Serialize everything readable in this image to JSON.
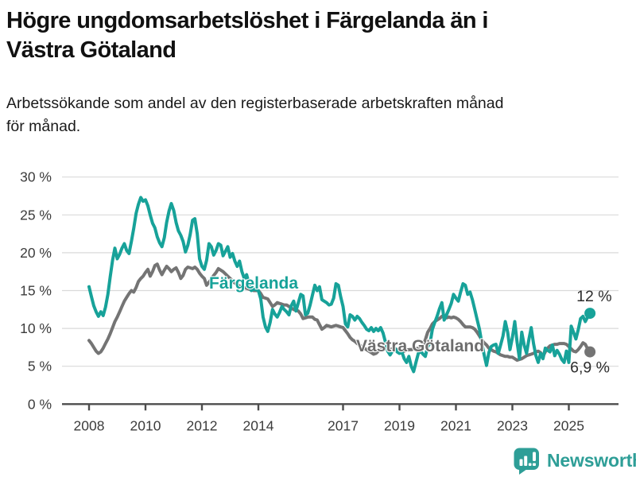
{
  "header": {
    "title_lines": [
      "Högre ungdomsarbetslöshet i Färgelanda än i",
      "Västra Götaland"
    ],
    "subtitle_lines": [
      "Arbetssökande som andel av den registerbaserade arbetskraften månad",
      "för månad."
    ]
  },
  "footer": {
    "brand": "Newsworthy"
  },
  "colors": {
    "teal": "#17A299",
    "gray_line": "#747474",
    "gray_label": "#6D6D6D",
    "grid": "#DADADA",
    "axis": "#4D4D4D",
    "tick_text": "#3C3C3C",
    "end_label_text": "#2D2D2D",
    "brand_teal": "#2E9E97"
  },
  "chart_data": {
    "type": "line",
    "title": "Högre ungdomsarbetslöshet i Färgelanda än i Västra Götaland",
    "subtitle": "Arbetssökande som andel av den registerbaserade arbetskraften månad för månad.",
    "x_unit": "month",
    "x_start_year": 2008,
    "x_end": "2025-10",
    "ylim": [
      0,
      30
    ],
    "grid": true,
    "legend_position": "inline-labels",
    "y_ticks": [
      0,
      5,
      10,
      15,
      20,
      25,
      30
    ],
    "y_tick_labels": [
      "0 %",
      "5 %",
      "10 %",
      "15 %",
      "20 %",
      "25 %",
      "30 %"
    ],
    "x_ticks": [
      2008,
      2010,
      2012,
      2014,
      2017,
      2019,
      2021,
      2023,
      2025
    ],
    "x_tick_labels": [
      "2008",
      "2010",
      "2012",
      "2014",
      "2017",
      "2019",
      "2021",
      "2023",
      "2025"
    ],
    "series": [
      {
        "name": "Färgelanda",
        "color": "#17A299",
        "end_label": "12 %",
        "end_value": 12,
        "values": [
          15.5,
          14.2,
          13,
          12.2,
          11.6,
          12.2,
          11.7,
          12.8,
          14.5,
          16.8,
          19,
          20.6,
          19.2,
          19.8,
          20.6,
          21.2,
          20.3,
          19.9,
          21.5,
          23.2,
          25.2,
          26.4,
          27.3,
          26.8,
          27,
          26.2,
          25,
          23.9,
          23.3,
          22.1,
          21.3,
          20.8,
          22,
          24,
          25.5,
          26.5,
          25.6,
          24,
          22.9,
          22.3,
          21.5,
          20.1,
          21,
          22.4,
          24.3,
          24.5,
          22.5,
          19.2,
          18.2,
          17.8,
          19,
          21.2,
          20.8,
          19.7,
          20.3,
          21.2,
          21,
          19.6,
          20.2,
          20.8,
          19.4,
          19.9,
          18.9,
          18.2,
          18.9,
          17.5,
          16.6,
          17.1,
          15.9,
          15,
          15.2,
          15.1,
          15,
          13.9,
          11.5,
          10.2,
          9.6,
          10.8,
          12.5,
          11.9,
          11.5,
          12.1,
          12.9,
          12.5,
          12.2,
          11.8,
          13,
          13.6,
          12.3,
          13.4,
          14.5,
          14.3,
          11.8,
          12,
          13.1,
          14.4,
          15.7,
          15,
          15.5,
          13.8,
          13.6,
          13.4,
          13.1,
          13.2,
          14,
          15.9,
          15.7,
          14.2,
          12.9,
          10.6,
          10.2,
          11.8,
          11.6,
          11.1,
          11.6,
          11.3,
          10.8,
          10.4,
          9.9,
          9.7,
          10.1,
          9.6,
          10,
          9.7,
          10.1,
          9.4,
          8.2,
          7,
          6.5,
          7,
          7.4,
          6.9,
          6.7,
          6.9,
          6,
          5.5,
          6.3,
          5,
          4.3,
          5.5,
          6.7,
          7,
          6.6,
          6.3,
          7.6,
          8.1,
          9.9,
          10.8,
          11.6,
          12.6,
          13.4,
          11.1,
          11.8,
          12.5,
          13.3,
          14.5,
          14,
          13.6,
          14.8,
          15.9,
          15.7,
          14.5,
          14.8,
          13.8,
          12.5,
          11.2,
          9.9,
          8.1,
          6.5,
          5.1,
          6.8,
          7.6,
          7.8,
          7.9,
          6.7,
          7.8,
          9,
          10.9,
          9.5,
          7.2,
          8.8,
          10.9,
          8.2,
          6,
          9.5,
          7.8,
          6.7,
          8.5,
          10.1,
          8,
          6.4,
          5.5,
          6.7,
          6,
          7.4,
          7.1,
          6.9,
          7.8,
          6.4,
          7.1,
          6.6,
          5.9,
          5.5,
          7,
          5.5,
          10.3,
          9.5,
          8.6,
          9.8,
          11.3,
          11.6,
          10.9,
          11.5,
          12
        ]
      },
      {
        "name": "Västra Götaland",
        "color": "#747474",
        "end_label": "6,9 %",
        "end_value": 6.9,
        "values": [
          8.4,
          8,
          7.5,
          7,
          6.7,
          6.9,
          7.4,
          8,
          8.6,
          9.3,
          10.1,
          10.9,
          11.5,
          12.2,
          12.9,
          13.6,
          14.1,
          14.6,
          15,
          14.8,
          15.4,
          16.2,
          16.6,
          16.9,
          17.4,
          17.8,
          16.9,
          17.5,
          18.3,
          18.5,
          17.7,
          17.1,
          17.7,
          18.2,
          17.9,
          17.5,
          17.8,
          18,
          17.4,
          16.6,
          17,
          17.8,
          18.1,
          18,
          17.9,
          18.1,
          17.8,
          17.3,
          16.9,
          16.6,
          15.7,
          16.1,
          16.5,
          17,
          17.4,
          17.9,
          17.7,
          17.5,
          17.2,
          16.9,
          16.6,
          16.3,
          16,
          15.8,
          15.6,
          15.5,
          15.4,
          15.3,
          15.2,
          15.1,
          15,
          15,
          15,
          14.6,
          14.1,
          14,
          13.9,
          13.4,
          12.9,
          13.1,
          13.4,
          13.3,
          13.2,
          13.1,
          13.1,
          12.9,
          12.7,
          12.5,
          12.4,
          12.3,
          11.9,
          11.3,
          11.4,
          11.5,
          11.5,
          11.5,
          11.2,
          11.1,
          10.5,
          9.9,
          10.1,
          10.4,
          10.3,
          10.2,
          10.3,
          10.4,
          10.3,
          10.2,
          10.1,
          9.7,
          9.3,
          8.8,
          8.5,
          8.3,
          8,
          7.8,
          7.6,
          7.4,
          7.2,
          7,
          6.8,
          6.6,
          6.7,
          7,
          7.4,
          7.5,
          7.4,
          7.3,
          7.2,
          7.3,
          7.3,
          7.2,
          7.1,
          7,
          7,
          7.1,
          7.2,
          7.2,
          7.3,
          7.3,
          7.4,
          7.5,
          7.8,
          8.5,
          9.5,
          10,
          10.6,
          10.9,
          11.1,
          11.3,
          11.6,
          11.5,
          11.4,
          11.5,
          11.4,
          11.5,
          11.4,
          11.2,
          10.9,
          10.5,
          10.2,
          10.2,
          10.2,
          10.1,
          9.9,
          9.5,
          9,
          8.5,
          8.1,
          7.8,
          7.4,
          7.2,
          7,
          6.9,
          6.7,
          6.5,
          6.4,
          6.3,
          6.3,
          6.2,
          6.2,
          6,
          5.8,
          5.9,
          6,
          6.2,
          6.4,
          6.5,
          6.6,
          6.7,
          6.9,
          7,
          6.8,
          6.3,
          6.9,
          7.4,
          7.7,
          7.8,
          7.9,
          7.9,
          8,
          8,
          8,
          7.9,
          7.6,
          7.3,
          7,
          6.9,
          7.2,
          7.6,
          8.1,
          7.9,
          7.3,
          6.9
        ]
      }
    ]
  }
}
